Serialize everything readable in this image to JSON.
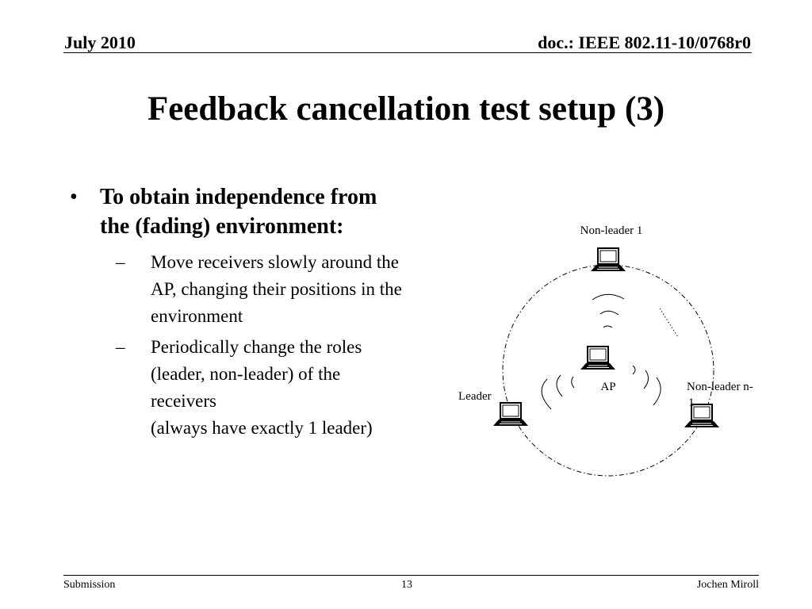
{
  "header": {
    "date": "July 2010",
    "doc_id": "doc.: IEEE 802.11-10/0768r0"
  },
  "slide": {
    "title": "Feedback cancellation test setup (3)"
  },
  "content": {
    "bullet_symbol": "•",
    "dash_symbol": "–",
    "main_point_lines": [
      "To obtain independence from",
      "the (fading) environment:"
    ],
    "sub_points": [
      {
        "lines": [
          "Move receivers slowly around the",
          "AP, changing their positions in the",
          "environment"
        ]
      },
      {
        "lines": [
          "Periodically change the roles",
          "(leader, non-leader) of the",
          "receivers",
          "(always have exactly 1 leader)"
        ]
      }
    ]
  },
  "diagram": {
    "labels": {
      "non_leader_1": "Non-leader 1",
      "ap": "AP",
      "leader": "Leader",
      "non_leader_n_1_line1": "Non-leader n-",
      "non_leader_n_1_line2": "1"
    },
    "icons": {
      "device": "laptop-icon",
      "signal": "wifi-wave-icon"
    },
    "circle_style": "dash-dot"
  },
  "footer": {
    "submission": "Submission",
    "page_number": "13",
    "author": "Jochen Miroll"
  }
}
